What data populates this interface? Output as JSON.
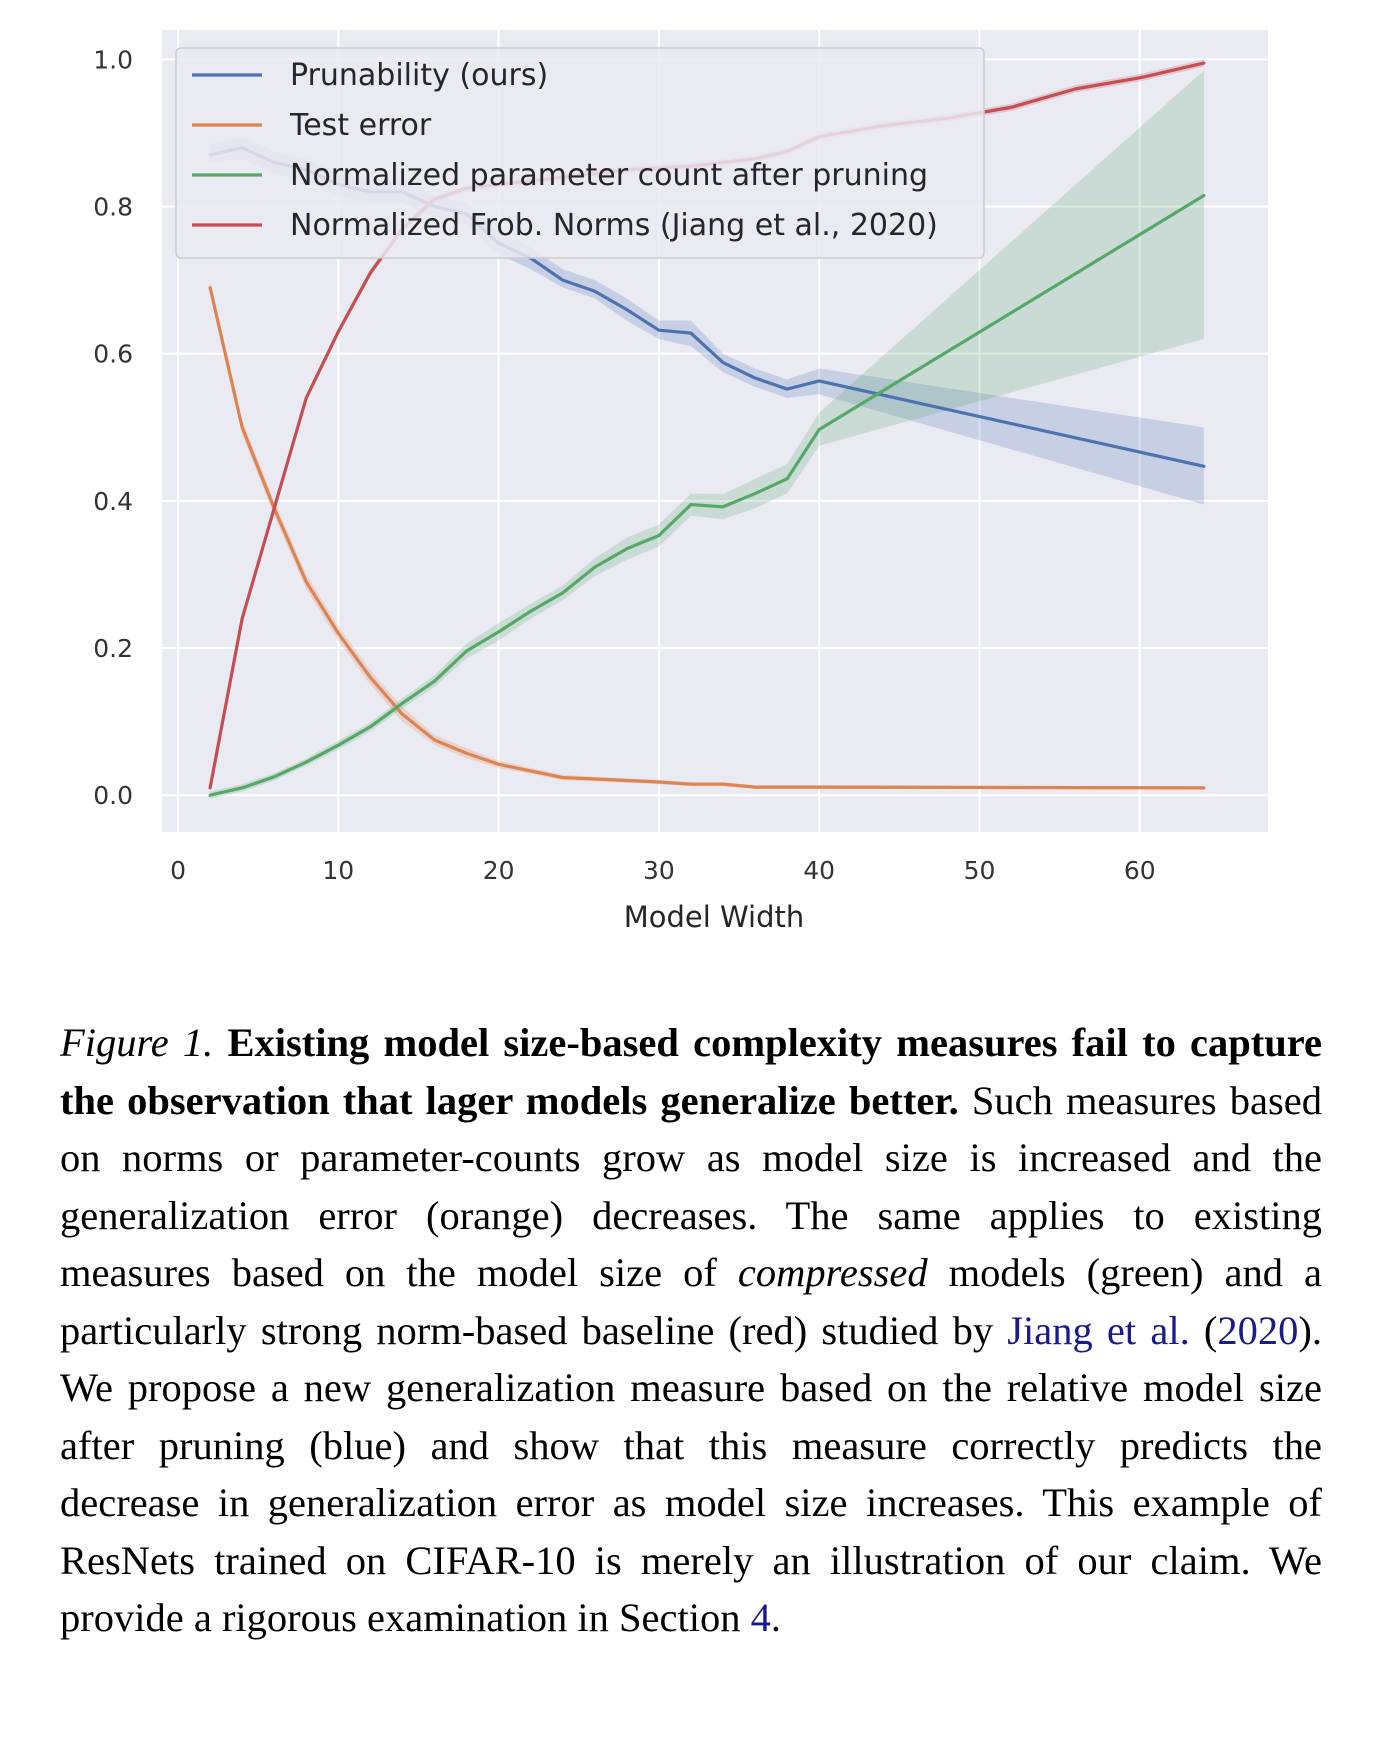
{
  "chart_data": {
    "type": "line",
    "xlabel": "Model Width",
    "ylabel": "",
    "xlim": [
      -1,
      68
    ],
    "ylim": [
      -0.05,
      1.04
    ],
    "xticks": [
      0,
      10,
      20,
      30,
      40,
      50,
      60
    ],
    "yticks": [
      0.0,
      0.2,
      0.4,
      0.6,
      0.8,
      1.0
    ],
    "ytick_labels": [
      "0.0",
      "0.2",
      "0.4",
      "0.6",
      "0.8",
      "1.0"
    ],
    "grid": true,
    "legend_position": "top-left",
    "series": [
      {
        "name": "Prunability (ours)",
        "color": "#4c72b0",
        "x": [
          2,
          4,
          6,
          8,
          10,
          12,
          14,
          16,
          18,
          20,
          22,
          24,
          26,
          28,
          30,
          32,
          34,
          36,
          38,
          40,
          64
        ],
        "y": [
          0.87,
          0.88,
          0.86,
          0.85,
          0.83,
          0.82,
          0.82,
          0.8,
          0.79,
          0.75,
          0.73,
          0.7,
          0.685,
          0.66,
          0.632,
          0.628,
          0.588,
          0.567,
          0.552,
          0.563,
          0.447
        ],
        "band_low": [
          0.86,
          0.865,
          0.845,
          0.835,
          0.815,
          0.805,
          0.805,
          0.785,
          0.775,
          0.735,
          0.715,
          0.69,
          0.675,
          0.645,
          0.62,
          0.61,
          0.575,
          0.555,
          0.54,
          0.545,
          0.395
        ],
        "band_high": [
          0.885,
          0.895,
          0.875,
          0.865,
          0.845,
          0.835,
          0.835,
          0.815,
          0.805,
          0.765,
          0.745,
          0.715,
          0.7,
          0.675,
          0.645,
          0.645,
          0.6,
          0.58,
          0.565,
          0.58,
          0.5
        ]
      },
      {
        "name": "Test error",
        "color": "#dd8452",
        "x": [
          2,
          4,
          6,
          8,
          10,
          12,
          14,
          16,
          18,
          20,
          22,
          24,
          26,
          28,
          30,
          32,
          34,
          36,
          38,
          40,
          64
        ],
        "y": [
          0.69,
          0.5,
          0.39,
          0.29,
          0.22,
          0.16,
          0.11,
          0.075,
          0.057,
          0.042,
          0.033,
          0.024,
          0.022,
          0.02,
          0.018,
          0.015,
          0.015,
          0.011,
          0.011,
          0.011,
          0.01
        ],
        "band_low": [
          0.68,
          0.49,
          0.38,
          0.28,
          0.21,
          0.15,
          0.1,
          0.068,
          0.05,
          0.037,
          0.029,
          0.02,
          0.019,
          0.017,
          0.015,
          0.012,
          0.012,
          0.009,
          0.009,
          0.009,
          0.008
        ],
        "band_high": [
          0.7,
          0.51,
          0.4,
          0.3,
          0.23,
          0.17,
          0.12,
          0.082,
          0.064,
          0.047,
          0.037,
          0.028,
          0.025,
          0.023,
          0.021,
          0.018,
          0.018,
          0.013,
          0.013,
          0.013,
          0.012
        ]
      },
      {
        "name": "Normalized parameter count after pruning",
        "color": "#55a868",
        "x": [
          2,
          4,
          6,
          8,
          10,
          12,
          14,
          16,
          18,
          20,
          22,
          24,
          26,
          28,
          30,
          32,
          34,
          36,
          38,
          40,
          64
        ],
        "y": [
          0.0,
          0.01,
          0.025,
          0.045,
          0.068,
          0.093,
          0.125,
          0.155,
          0.196,
          0.222,
          0.25,
          0.275,
          0.31,
          0.335,
          0.353,
          0.395,
          0.392,
          0.41,
          0.43,
          0.497,
          0.815
        ],
        "band_low": [
          -0.005,
          0.005,
          0.02,
          0.04,
          0.062,
          0.087,
          0.118,
          0.147,
          0.186,
          0.21,
          0.24,
          0.265,
          0.298,
          0.32,
          0.338,
          0.38,
          0.375,
          0.39,
          0.41,
          0.475,
          0.62
        ],
        "band_high": [
          0.005,
          0.015,
          0.03,
          0.05,
          0.074,
          0.099,
          0.132,
          0.163,
          0.206,
          0.234,
          0.26,
          0.285,
          0.322,
          0.35,
          0.368,
          0.41,
          0.409,
          0.43,
          0.45,
          0.52,
          0.985
        ]
      },
      {
        "name": "Normalized Frob. Norms (Jiang et al., 2020)",
        "color": "#c44e52",
        "x": [
          2,
          4,
          8,
          10,
          12,
          14,
          16,
          18,
          20,
          24,
          28,
          32,
          36,
          38,
          40,
          44,
          48,
          52,
          56,
          60,
          64
        ],
        "y": [
          0.01,
          0.24,
          0.54,
          0.63,
          0.71,
          0.77,
          0.81,
          0.825,
          0.83,
          0.84,
          0.85,
          0.855,
          0.865,
          0.875,
          0.895,
          0.91,
          0.92,
          0.935,
          0.96,
          0.975,
          0.995
        ],
        "band_low": [
          0.005,
          0.235,
          0.535,
          0.625,
          0.705,
          0.765,
          0.805,
          0.82,
          0.825,
          0.835,
          0.845,
          0.85,
          0.86,
          0.87,
          0.89,
          0.905,
          0.915,
          0.93,
          0.955,
          0.97,
          0.99
        ],
        "band_high": [
          0.015,
          0.245,
          0.545,
          0.635,
          0.715,
          0.775,
          0.815,
          0.83,
          0.835,
          0.845,
          0.855,
          0.86,
          0.87,
          0.88,
          0.9,
          0.915,
          0.925,
          0.94,
          0.965,
          0.98,
          1.0
        ]
      }
    ]
  },
  "caption": {
    "figure_label": "Figure 1.",
    "bold_text": "Existing model size-based complexity measures fail to capture the observation that lager models generalize better.",
    "text_1": "Such measures based on norms or parameter-counts grow as model size is increased and the generalization error (orange) decreases. The same applies to existing measures based on the model size of",
    "emphasis": "compressed",
    "text_2": "models (green) and a particularly strong norm-based baseline (red) studied by",
    "cite_authors": "Jiang et al.",
    "cite_open": "(",
    "cite_year": "2020",
    "cite_close": ").",
    "text_3": "We propose a new generalization measure based on the relative model size after pruning (blue) and show that this measure correctly predicts the decrease in generalization error as model size increases. This example of ResNets trained on CIFAR-10 is merely an illustration of our claim. We provide a rigorous examination in Section",
    "section_ref": "4",
    "text_end": "."
  }
}
